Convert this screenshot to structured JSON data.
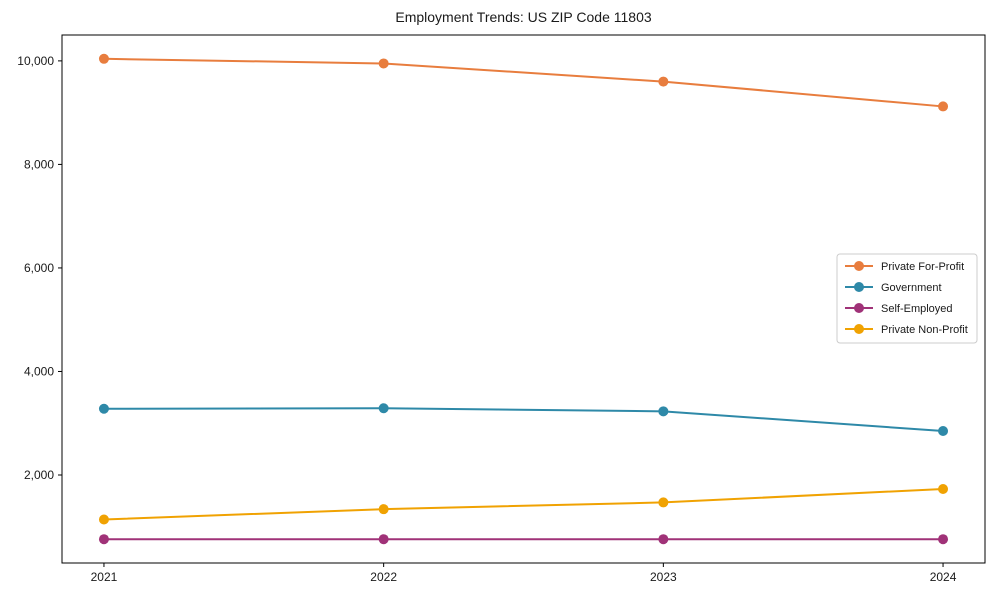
{
  "figure": {
    "background": "#ffffff",
    "axis_color": "#000000",
    "text_color": "#1a1a1a"
  },
  "chart_data": {
    "type": "line",
    "title": "Employment Trends: US ZIP Code 11803",
    "x": [
      2021,
      2022,
      2023,
      2024
    ],
    "x_tick_labels": [
      "2021",
      "2022",
      "2023",
      "2024"
    ],
    "series": [
      {
        "name": "Private For-Profit",
        "color": "#e87d3e",
        "values": [
          10040,
          9950,
          9600,
          9120
        ]
      },
      {
        "name": "Government",
        "color": "#2e89a8",
        "values": [
          3280,
          3290,
          3230,
          2850
        ]
      },
      {
        "name": "Self-Employed",
        "color": "#a03278",
        "values": [
          760,
          760,
          760,
          760
        ]
      },
      {
        "name": "Private Non-Profit",
        "color": "#f0a202",
        "values": [
          1140,
          1340,
          1470,
          1730
        ]
      }
    ],
    "xlabel": "",
    "ylabel": "",
    "xlim": [
      2020.85,
      2024.15
    ],
    "ylim": [
      300,
      10500
    ],
    "yticks": [
      2000,
      4000,
      6000,
      8000,
      10000
    ],
    "ytick_labels": [
      "2,000",
      "4,000",
      "6,000",
      "8,000",
      "10,000"
    ],
    "grid": false,
    "marker": "circle",
    "marker_size": 5,
    "line_width": 2,
    "legend": {
      "position": "right-middle",
      "border_color": "#cccccc",
      "background": "#ffffff"
    }
  }
}
